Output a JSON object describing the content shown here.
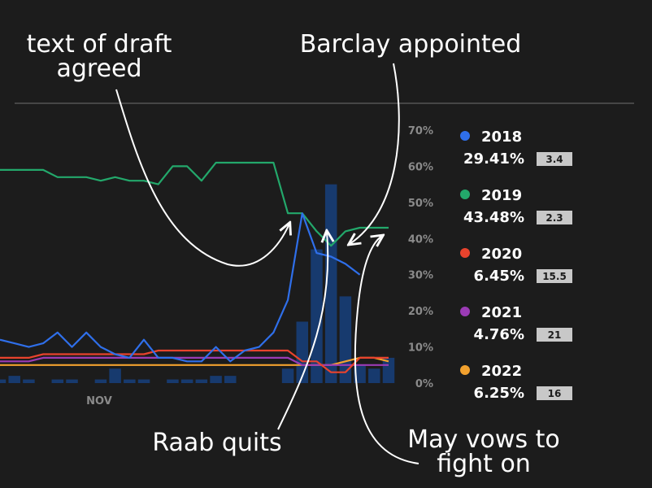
{
  "annotations": {
    "draft_agreed": [
      "text of draft",
      "agreed"
    ],
    "barclay": "Barclay appointed",
    "raab": "Raab quits",
    "may_vows": [
      "May vows to",
      "fight on"
    ]
  },
  "colors": {
    "background": "#1c1c1c",
    "grid": "#555555",
    "bars": "#173a6e",
    "bars_secondary": "#1d5e44",
    "series_2018": "#2f6fea",
    "series_2019": "#23a86b",
    "series_2020": "#e8432d",
    "series_2021": "#9b3bb5",
    "series_2022": "#f2a12e"
  },
  "chart_data": {
    "type": "line",
    "xlabel": "",
    "ylabel": "",
    "x_tick_labels": [
      "NOV"
    ],
    "y_ticks": [
      "0%",
      "10%",
      "20%",
      "30%",
      "40%",
      "50%",
      "60%",
      "70%"
    ],
    "ylim": [
      0,
      70
    ],
    "grid": false,
    "legend_position": "right",
    "x": [
      1,
      2,
      3,
      4,
      5,
      6,
      7,
      8,
      9,
      10,
      11,
      12,
      13,
      14,
      15,
      16,
      17,
      18,
      19,
      20,
      21,
      22,
      23,
      24,
      25,
      26,
      27,
      28
    ],
    "series": [
      {
        "name": "2018",
        "percent": "29.41%",
        "odds": "3.4",
        "color": "#2f6fea",
        "values": [
          12,
          11,
          10,
          11,
          14,
          10,
          14,
          10,
          8,
          7,
          12,
          7,
          7,
          6,
          6,
          10,
          6,
          9,
          10,
          14,
          23,
          47,
          36,
          35,
          33,
          30,
          null,
          null
        ]
      },
      {
        "name": "2019",
        "percent": "43.48%",
        "odds": "2.3",
        "color": "#23a86b",
        "values": [
          59,
          59,
          59,
          59,
          57,
          57,
          57,
          56,
          57,
          56,
          56,
          55,
          60,
          60,
          56,
          61,
          61,
          61,
          61,
          61,
          47,
          47,
          42,
          38,
          42,
          43,
          43,
          43
        ]
      },
      {
        "name": "2020",
        "percent": "6.45%",
        "odds": "15.5",
        "color": "#e8432d",
        "values": [
          7,
          7,
          7,
          8,
          8,
          8,
          8,
          8,
          8,
          8,
          8,
          9,
          9,
          9,
          9,
          9,
          9,
          9,
          9,
          9,
          9,
          6,
          6,
          3,
          3,
          7,
          7,
          7
        ]
      },
      {
        "name": "2021",
        "percent": "4.76%",
        "odds": "21",
        "color": "#9b3bb5",
        "values": [
          6,
          6,
          6,
          7,
          7,
          7,
          7,
          7,
          7,
          7,
          7,
          7,
          7,
          7,
          7,
          7,
          7,
          7,
          7,
          7,
          7,
          5,
          5,
          5,
          5,
          5,
          5,
          5
        ]
      },
      {
        "name": "2022",
        "percent": "6.25%",
        "odds": "16",
        "color": "#f2a12e",
        "values": [
          5,
          5,
          5,
          5,
          5,
          5,
          5,
          5,
          5,
          5,
          5,
          5,
          5,
          5,
          5,
          5,
          5,
          5,
          5,
          5,
          5,
          5,
          5,
          5,
          6,
          7,
          7,
          6
        ]
      }
    ],
    "volume_bars": [
      1,
      2,
      1,
      0,
      1,
      1,
      0,
      1,
      4,
      1,
      1,
      0,
      1,
      1,
      1,
      2,
      2,
      0,
      0,
      0,
      4,
      17,
      37,
      55,
      24,
      5,
      4,
      7
    ]
  }
}
